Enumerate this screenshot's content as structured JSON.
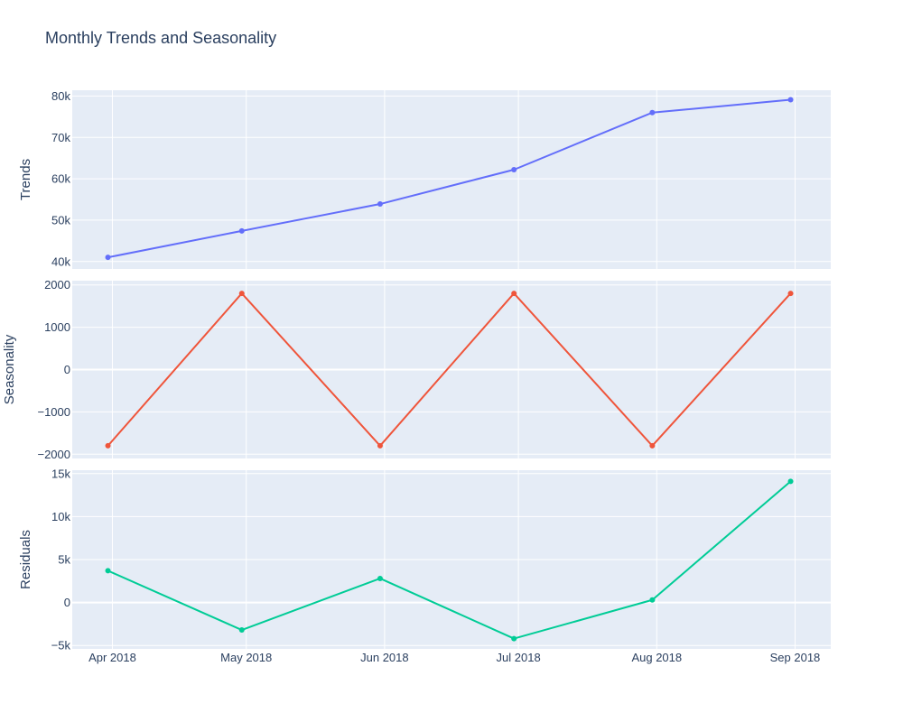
{
  "title": "Monthly Trends and Seasonality",
  "chart_data": {
    "type": "line",
    "title": "Monthly Trends and Seasonality",
    "x": [
      "2018-03-31",
      "2018-04-30",
      "2018-05-31",
      "2018-06-30",
      "2018-07-31",
      "2018-08-31"
    ],
    "xaxis": {
      "tick_values": [
        "2018-04-01",
        "2018-05-01",
        "2018-06-01",
        "2018-07-01",
        "2018-08-01",
        "2018-09-01"
      ],
      "tick_labels": [
        "Apr 2018",
        "May 2018",
        "Jun 2018",
        "Jul 2018",
        "Aug 2018",
        "Sep 2018"
      ],
      "range": [
        "2018-03-23",
        "2018-09-09"
      ]
    },
    "grid": true,
    "panels": [
      {
        "ylabel": "Trends",
        "ylim": [
          38200,
          81400
        ],
        "yticks": [
          40000,
          50000,
          60000,
          70000,
          80000
        ],
        "ytick_labels": [
          "40k",
          "50k",
          "60k",
          "70k",
          "80k"
        ],
        "series": [
          {
            "values": [
              41000,
              47400,
              53900,
              62200,
              76000,
              79100
            ],
            "color": "#636efa"
          }
        ]
      },
      {
        "ylabel": "Seasonality",
        "ylim": [
          -2100,
          2100
        ],
        "yticks": [
          -2000,
          -1000,
          0,
          1000,
          2000
        ],
        "ytick_labels": [
          "−2000",
          "−1000",
          "0",
          "1000",
          "2000"
        ],
        "series": [
          {
            "values": [
              -1800,
              1800,
              -1800,
              1800,
              -1800,
              1800
            ],
            "color": "#ef553b"
          }
        ]
      },
      {
        "ylabel": "Residuals",
        "ylim": [
          -5400,
          15400
        ],
        "yticks": [
          -5000,
          0,
          5000,
          10000,
          15000
        ],
        "ytick_labels": [
          "−5k",
          "0",
          "5k",
          "10k",
          "15k"
        ],
        "series": [
          {
            "values": [
              3700,
              -3200,
              2800,
              -4200,
              300,
              14100
            ],
            "color": "#00cc96"
          }
        ]
      }
    ]
  }
}
